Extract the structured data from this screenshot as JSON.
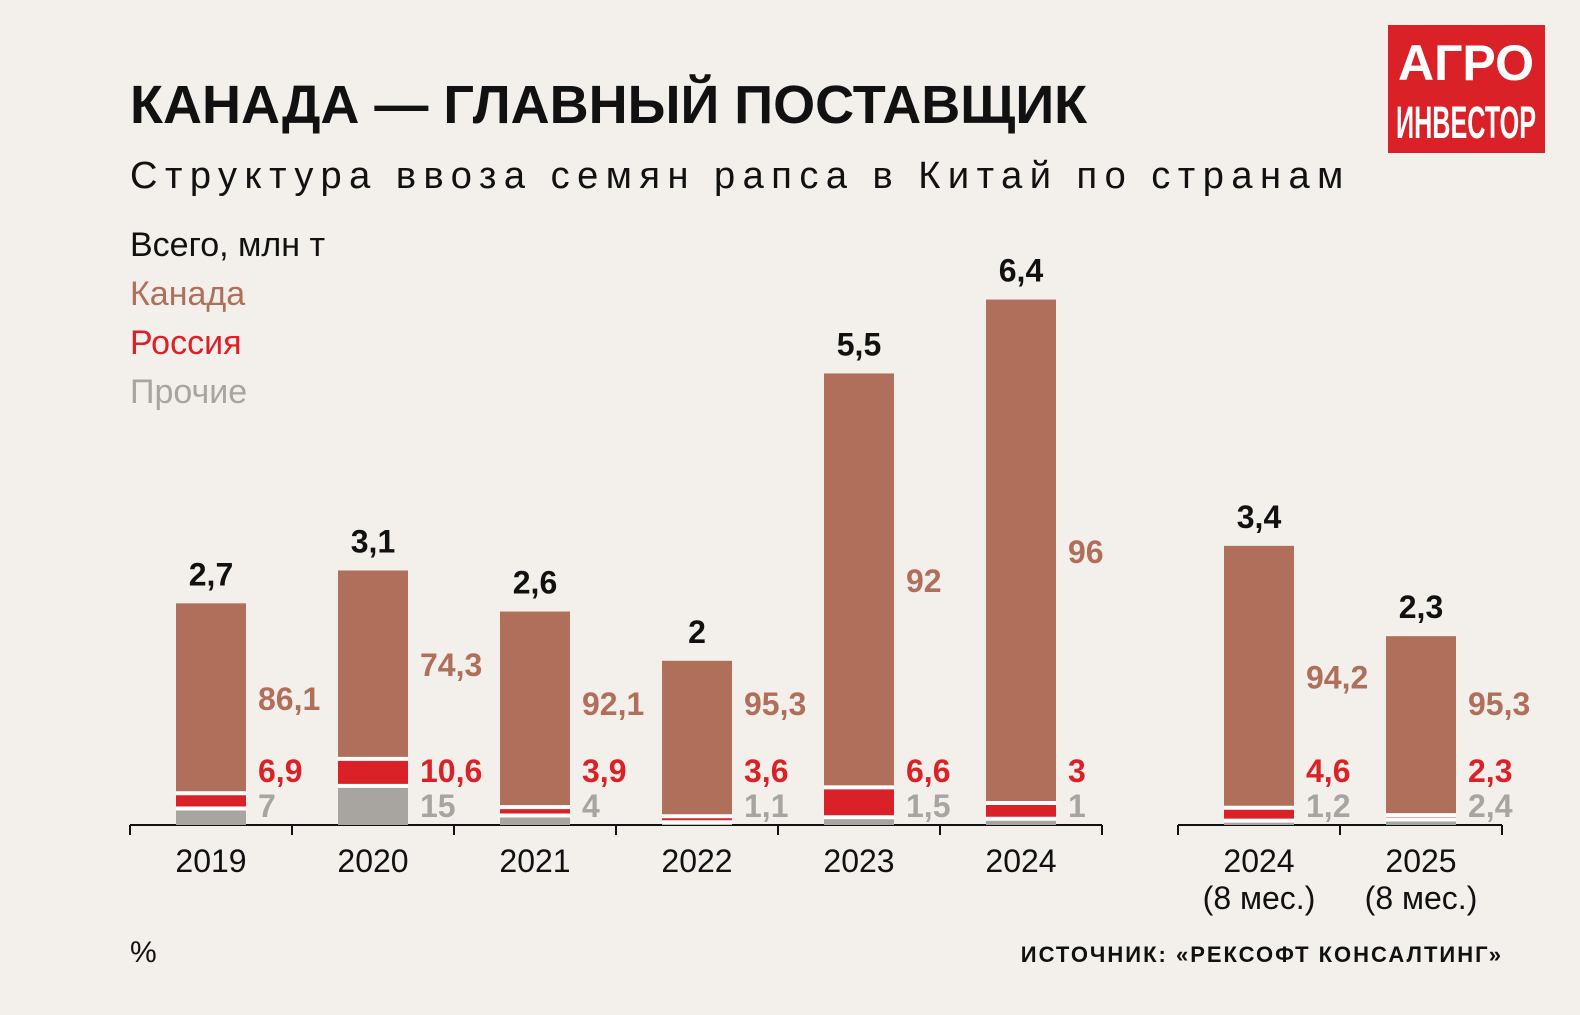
{
  "header": {
    "title": "КАНАДА — ГЛАВНЫЙ ПОСТАВЩИК",
    "subtitle": "Структура ввоза семян рапса в Китай по странам"
  },
  "logo": {
    "line1": "АГРО",
    "line2": "ИНВЕСТОР"
  },
  "footer": {
    "unit": "%",
    "source": "ИСТОЧНИК: «РЕКСОФТ КОНСАЛТИНГ»"
  },
  "colors": {
    "background": "#f3efeb",
    "canada": "#b06f5b",
    "russia": "#da2128",
    "other": "#a8a49f",
    "text": "#111111",
    "logo": "#da2128"
  },
  "chart_data": {
    "type": "bar",
    "stacked": true,
    "title": "КАНАДА — ГЛАВНЫЙ ПОСТАВЩИК",
    "subtitle": "Структура ввоза семян рапса в Китай по странам",
    "legend": [
      {
        "key": "total",
        "label": "Всего, млн т"
      },
      {
        "key": "canada",
        "label": "Канада"
      },
      {
        "key": "russia",
        "label": "Россия"
      },
      {
        "key": "other",
        "label": "Прочие"
      }
    ],
    "unit_label": "%",
    "groups": [
      {
        "categories": [
          {
            "label": [
              "2019"
            ],
            "total": 2.7,
            "total_label": "2,7",
            "canada": 86.1,
            "canada_label": "86,1",
            "russia": 6.9,
            "russia_label": "6,9",
            "other": 7,
            "other_label": "7"
          },
          {
            "label": [
              "2020"
            ],
            "total": 3.1,
            "total_label": "3,1",
            "canada": 74.3,
            "canada_label": "74,3",
            "russia": 10.6,
            "russia_label": "10,6",
            "other": 15,
            "other_label": "15"
          },
          {
            "label": [
              "2021"
            ],
            "total": 2.6,
            "total_label": "2,6",
            "canada": 92.1,
            "canada_label": "92,1",
            "russia": 3.9,
            "russia_label": "3,9",
            "other": 4,
            "other_label": "4"
          },
          {
            "label": [
              "2022"
            ],
            "total": 2,
            "total_label": "2",
            "canada": 95.3,
            "canada_label": "95,3",
            "russia": 3.6,
            "russia_label": "3,6",
            "other": 1.1,
            "other_label": "1,1"
          },
          {
            "label": [
              "2023"
            ],
            "total": 5.5,
            "total_label": "5,5",
            "canada": 92,
            "canada_label": "92",
            "russia": 6.6,
            "russia_label": "6,6",
            "other": 1.5,
            "other_label": "1,5"
          },
          {
            "label": [
              "2024"
            ],
            "total": 6.4,
            "total_label": "6,4",
            "canada": 96,
            "canada_label": "96",
            "russia": 3,
            "russia_label": "3",
            "other": 1,
            "other_label": "1"
          }
        ]
      },
      {
        "categories": [
          {
            "label": [
              "2024",
              "(8 мес.)"
            ],
            "total": 3.4,
            "total_label": "3,4",
            "canada": 94.2,
            "canada_label": "94,2",
            "russia": 4.6,
            "russia_label": "4,6",
            "other": 1.2,
            "other_label": "1,2"
          },
          {
            "label": [
              "2025",
              "(8 мес.)"
            ],
            "total": 2.3,
            "total_label": "2,3",
            "canada": 95.3,
            "canada_label": "95,3",
            "russia": 2.3,
            "russia_label": "2,3",
            "other": 2.4,
            "other_label": "2,4"
          }
        ]
      }
    ]
  }
}
